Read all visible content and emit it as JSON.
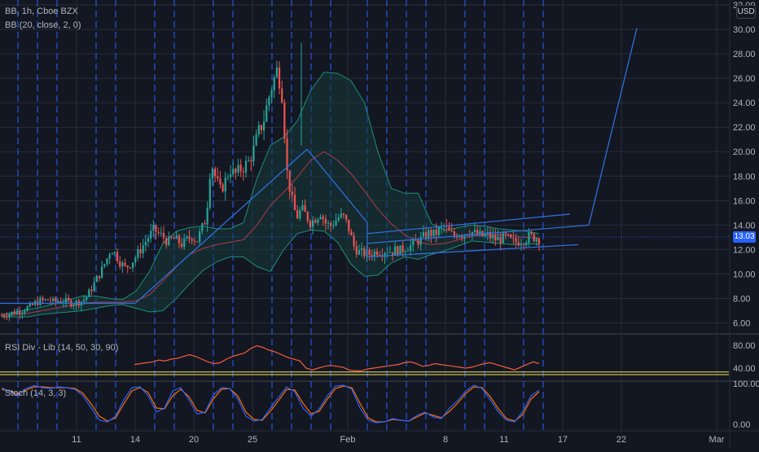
{
  "header": {
    "symbol_line": "BB, 1h, Cboe BZX",
    "bb_line": "BB (20, close, 2, 0)",
    "currency": "USD"
  },
  "rsi_panel": {
    "title": "RSI Div - Lib (14, 50, 30, 90)"
  },
  "stoch_panel": {
    "title": "Stoch (14, 3, 3)"
  },
  "last_price_label": "13.03",
  "colors": {
    "background": "#131722",
    "grid": "#2a2e39",
    "session_dash": "#2962ff",
    "candle_up": "#26a69a",
    "candle_down": "#ef5350",
    "bb_band": "#1b8f7c",
    "bb_fill": "#163b3a",
    "bb_basis": "#b2394b",
    "trendline": "#2e6fd9",
    "rsi_line": "#f45b3d",
    "rsi_level": "#f2e35c",
    "stoch_k": "#2962ff",
    "stoch_d": "#ff6d00",
    "price_tag": "#2962ff"
  },
  "chart_data": [
    {
      "type": "candlestick",
      "title": "BB, 1h, Cboe BZX",
      "x_ticks": [
        "11",
        "14",
        "20",
        "25",
        "Feb",
        "8",
        "11",
        "17",
        "22",
        "Mar"
      ],
      "y_ticks": [
        6,
        8,
        10,
        12,
        14,
        16,
        18,
        20,
        22,
        24,
        26,
        28,
        30,
        32
      ],
      "y_tick_labels": [
        "6.00",
        "8.00",
        "10.00",
        "12.00",
        "14.00",
        "16.00",
        "18.00",
        "20.00",
        "22.00",
        "24.00",
        "26.00",
        "28.00",
        "30.00",
        "32.00"
      ],
      "ylim": [
        5.5,
        32.2
      ],
      "last_price": 13.03,
      "price_path": [
        6.6,
        6.7,
        6.8,
        6.9,
        7.0,
        7.2,
        7.3,
        7.6,
        7.8,
        7.8,
        7.9,
        7.7,
        7.8,
        7.8,
        7.7,
        7.6,
        7.7,
        7.8,
        8.2,
        8.9,
        9.6,
        10.3,
        11.1,
        12.1,
        11.6,
        10.9,
        10.5,
        10.8,
        11.3,
        11.9,
        12.5,
        13.1,
        13.6,
        13.3,
        13.0,
        12.6,
        12.9,
        12.7,
        12.4,
        12.8,
        13.1,
        12.7,
        13.6,
        14.6,
        19.3,
        17.8,
        16.8,
        17.6,
        18.6,
        18.1,
        18.5,
        18.8,
        19.2,
        20.2,
        21.6,
        22.4,
        24.2,
        25.6,
        26.8,
        24.6,
        18.3,
        16.1,
        14.6,
        15.3,
        14.8,
        14.2,
        14.6,
        15.1,
        14.2,
        13.9,
        14.3,
        14.7,
        14.6,
        13.7,
        12.3,
        11.8,
        11.7,
        11.6,
        11.7,
        11.9,
        11.8,
        12.0,
        11.8,
        12.0,
        11.9,
        12.2,
        12.3,
        12.6,
        12.8,
        13.1,
        13.4,
        13.2,
        13.6,
        13.9,
        13.4,
        13.1,
        13.4,
        13.2,
        13.6,
        13.4,
        13.2,
        13.1,
        13.2,
        13.0,
        12.8,
        12.9,
        13.0,
        12.7,
        12.6,
        12.7,
        12.8,
        13.1,
        13.0,
        12.9
      ],
      "bollinger": {
        "params": "20, close, 2, 0",
        "upper": [
          6.7,
          6.9,
          7.1,
          7.3,
          7.6,
          7.9,
          8.2,
          8.2,
          8.0,
          7.9,
          8.6,
          10.2,
          12.5,
          13.5,
          13.8,
          13.9,
          13.7,
          13.7,
          14.2,
          17.8,
          20.5,
          21.2,
          22.5,
          25.0,
          26.5,
          26.4,
          25.8,
          24.0,
          20.0,
          17.0,
          16.6,
          16.6,
          14.1,
          13.6,
          13.8,
          14.0,
          13.9,
          13.7,
          13.6,
          13.5,
          13.3
        ],
        "basis": [
          6.6,
          6.7,
          6.8,
          7.0,
          7.2,
          7.4,
          7.6,
          7.7,
          7.7,
          7.7,
          7.8,
          8.3,
          9.4,
          10.6,
          11.6,
          12.1,
          12.4,
          12.6,
          12.8,
          14.0,
          15.6,
          16.7,
          17.9,
          19.3,
          20.0,
          19.3,
          18.2,
          16.8,
          15.3,
          14.1,
          13.2,
          12.6,
          12.4,
          12.5,
          12.8,
          13.1,
          13.2,
          13.2,
          13.1,
          13.0,
          12.9
        ],
        "lower": [
          6.5,
          6.5,
          6.5,
          6.7,
          6.8,
          6.9,
          7.0,
          7.2,
          7.4,
          7.5,
          7.2,
          6.9,
          7.0,
          8.0,
          9.2,
          10.3,
          11.0,
          11.4,
          11.4,
          10.6,
          10.2,
          12.0,
          13.3,
          13.6,
          13.5,
          12.6,
          10.8,
          9.8,
          9.9,
          10.9,
          11.4,
          11.2,
          11.6,
          11.9,
          12.3,
          12.7,
          12.6,
          12.5,
          12.4,
          12.5,
          12.4
        ]
      },
      "drawings": [
        {
          "kind": "trend",
          "from": [
            "start",
            7.6
          ],
          "to": [
            "14",
            7.6
          ]
        },
        {
          "kind": "trend",
          "from": [
            "14",
            7.6
          ],
          "to": [
            "mid 25",
            20.2
          ]
        },
        {
          "kind": "trend",
          "from": [
            "mid 25",
            20.2
          ],
          "to": [
            "Feb 1",
            14.2
          ]
        },
        {
          "kind": "channel_top",
          "from": [
            "Feb 1",
            13.3
          ],
          "to": [
            "16",
            14.9
          ]
        },
        {
          "kind": "channel_mid",
          "from": [
            "Feb 1",
            12.5
          ],
          "to": [
            "18",
            14.0
          ]
        },
        {
          "kind": "channel_bottom",
          "from": [
            "Feb 1",
            11.4
          ],
          "to": [
            "17",
            12.4
          ]
        },
        {
          "kind": "projection",
          "from": [
            "18",
            14.0
          ],
          "to": [
            "21",
            30.1
          ]
        }
      ]
    },
    {
      "type": "line",
      "title": "RSI Div - Lib (14, 50, 30, 90)",
      "y_ticks": [
        40,
        80
      ],
      "y_tick_labels": [
        "40.00",
        "80.00"
      ],
      "levels": [
        50,
        30
      ],
      "values": [
        48,
        50,
        52,
        54,
        58,
        56,
        60,
        62,
        66,
        70,
        66,
        60,
        54,
        50,
        52,
        60,
        66,
        70,
        74,
        84,
        90,
        86,
        80,
        76,
        70,
        64,
        60,
        56,
        40,
        36,
        40,
        44,
        46,
        44,
        42,
        36,
        34,
        34,
        38,
        40,
        42,
        44,
        46,
        48,
        52,
        54,
        50,
        44,
        46,
        50,
        48,
        46,
        44,
        42,
        40,
        42,
        46,
        50,
        52,
        48,
        44,
        40,
        36,
        42,
        48,
        54,
        50
      ]
    },
    {
      "type": "line",
      "title": "Stoch (14, 3, 3)",
      "y_ticks": [
        0,
        100
      ],
      "y_tick_labels": [
        "0.00",
        "100.00"
      ],
      "series": [
        {
          "values": [
            90,
            80,
            70,
            88,
            95,
            90,
            88,
            92,
            90,
            86,
            70,
            40,
            10,
            6,
            20,
            60,
            90,
            92,
            70,
            30,
            40,
            82,
            90,
            60,
            25,
            30,
            72,
            90,
            88,
            62,
            20,
            8,
            12,
            40,
            66,
            92,
            80,
            40,
            20,
            38,
            70,
            94,
            96,
            86,
            40,
            10,
            4,
            6,
            14,
            10,
            8,
            22,
            30,
            18,
            14,
            40,
            58,
            82,
            96,
            88,
            60,
            30,
            10,
            6,
            32,
            70,
            84
          ]
        },
        {
          "values": [
            86,
            82,
            74,
            84,
            92,
            92,
            90,
            90,
            90,
            88,
            76,
            50,
            20,
            8,
            16,
            50,
            82,
            90,
            78,
            40,
            38,
            70,
            86,
            68,
            34,
            28,
            62,
            86,
            88,
            70,
            30,
            12,
            10,
            32,
            58,
            86,
            84,
            52,
            26,
            32,
            62,
            88,
            94,
            90,
            52,
            16,
            6,
            6,
            12,
            10,
            8,
            18,
            28,
            22,
            16,
            32,
            52,
            76,
            92,
            90,
            68,
            38,
            14,
            8,
            24,
            62,
            80
          ]
        }
      ]
    }
  ]
}
